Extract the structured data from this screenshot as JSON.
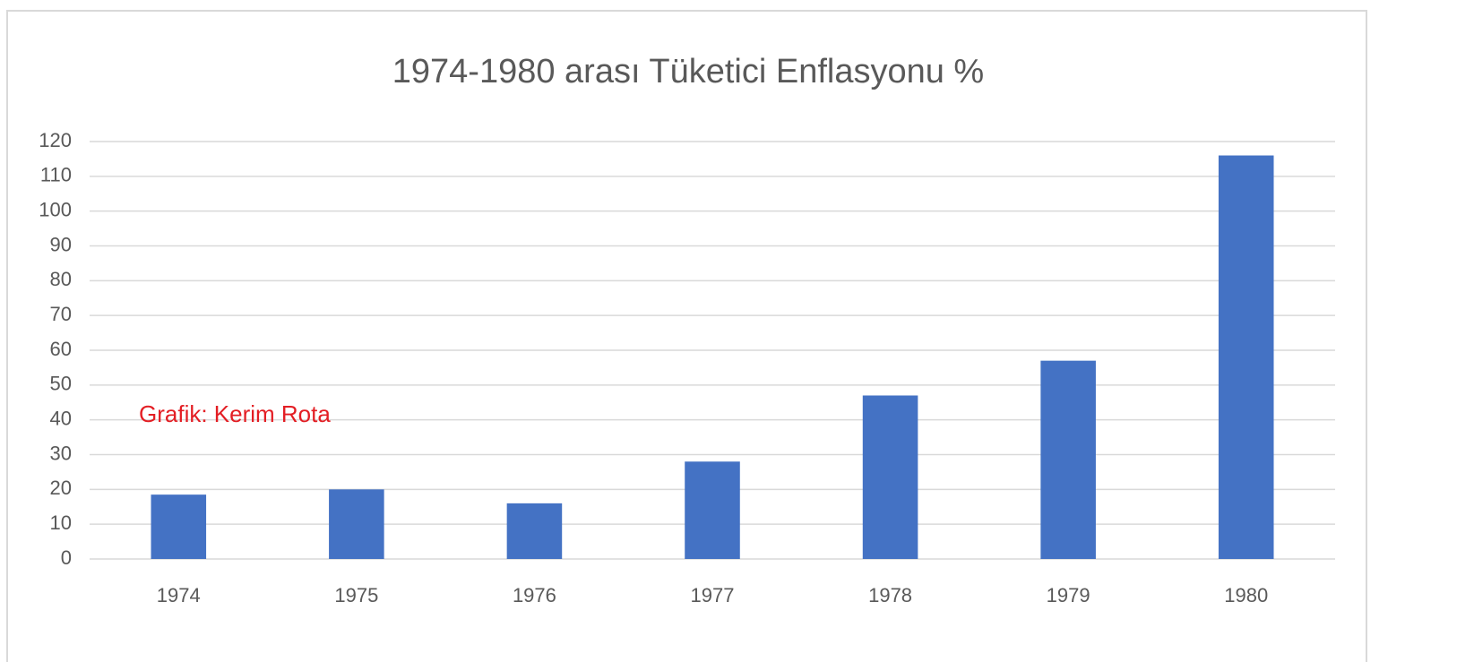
{
  "chart_data": {
    "type": "bar",
    "title": "1974-1980 arası Tüketici Enflasyonu %",
    "categories": [
      "1974",
      "1975",
      "1976",
      "1977",
      "1978",
      "1979",
      "1980"
    ],
    "values": [
      18.5,
      20,
      16,
      28,
      47,
      57,
      116
    ],
    "color": "#4472c4",
    "ylim": [
      0,
      120
    ],
    "yticks": [
      0,
      10,
      20,
      30,
      40,
      50,
      60,
      70,
      80,
      90,
      100,
      110,
      120
    ],
    "grid": true,
    "annotation": "Grafik: Kerim Rota"
  }
}
